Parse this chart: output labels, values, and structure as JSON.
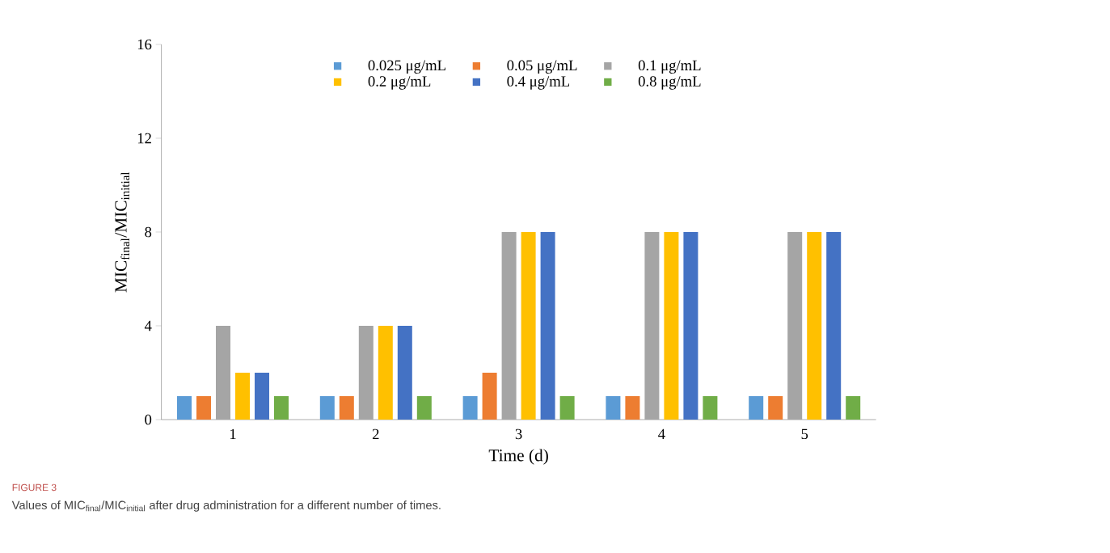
{
  "chart_data": {
    "type": "bar",
    "categories": [
      "1",
      "2",
      "3",
      "4",
      "5"
    ],
    "series": [
      {
        "name": "0.025 μg/mL",
        "color": "#5b9bd5",
        "values": [
          1,
          1,
          1,
          1,
          1
        ]
      },
      {
        "name": "0.05 μg/mL",
        "color": "#ed7d31",
        "values": [
          1,
          1,
          2,
          1,
          1
        ]
      },
      {
        "name": "0.1 μg/mL",
        "color": "#a5a5a5",
        "values": [
          4,
          4,
          8,
          8,
          8
        ]
      },
      {
        "name": "0.2 μg/mL",
        "color": "#ffc000",
        "values": [
          2,
          4,
          8,
          8,
          8
        ]
      },
      {
        "name": "0.4 μg/mL",
        "color": "#4472c4",
        "values": [
          2,
          4,
          8,
          8,
          8
        ]
      },
      {
        "name": "0.8 μg/mL",
        "color": "#70ad47",
        "values": [
          1,
          1,
          1,
          1,
          1
        ]
      }
    ],
    "xlabel": "Time (d)",
    "ylabel": "MIC$_{final}$/MIC$_{initial}$",
    "ylim": [
      0,
      16
    ],
    "yticks": [
      0,
      4,
      8,
      12,
      16
    ],
    "legend": "top",
    "grid": false,
    "annotations": [
      "FIGURE 3",
      "Values of MIC$_{final}$/MIC$_{initial}$ after drug administration for a different number of times."
    ]
  }
}
